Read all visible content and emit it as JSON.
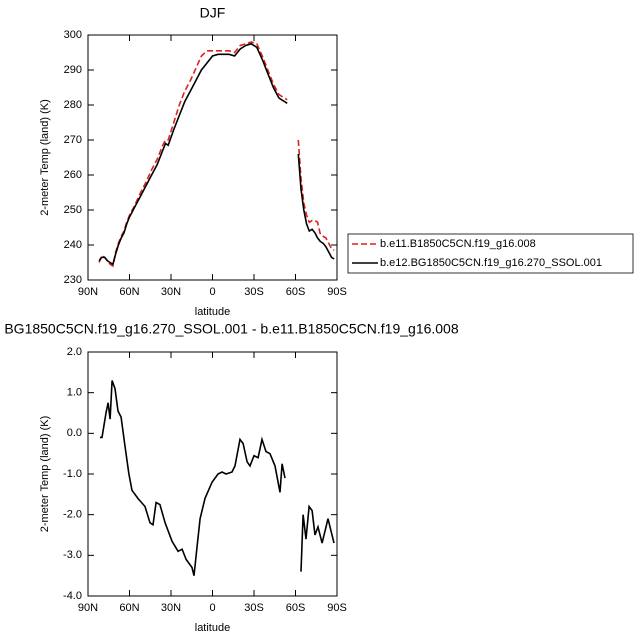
{
  "chart_data": [
    {
      "type": "line",
      "title": "DJF",
      "xlabel": "latitude",
      "ylabel": "2-meter Temp (land) (K)",
      "xlim": [
        90,
        -90
      ],
      "ylim": [
        230,
        300
      ],
      "xticks": [
        {
          "value": 90,
          "label": "90N"
        },
        {
          "value": 60,
          "label": "60N"
        },
        {
          "value": 30,
          "label": "30N"
        },
        0,
        {
          "value": -30,
          "label": "30S"
        },
        {
          "value": -60,
          "label": "60S"
        },
        {
          "value": -90,
          "label": "90S"
        }
      ],
      "yticks": [
        230,
        240,
        250,
        260,
        270,
        280,
        290,
        300
      ],
      "legend": "right",
      "x": [
        82,
        80,
        78,
        76,
        74,
        72,
        70,
        68,
        66,
        64,
        62,
        60,
        56,
        52,
        48,
        44,
        40,
        36,
        34,
        32,
        28,
        24,
        20,
        16,
        12,
        8,
        4,
        0,
        -4,
        -8,
        -12,
        -16,
        -20,
        -24,
        -28,
        -32,
        -36,
        -40,
        -44,
        -48,
        -50,
        -52,
        -54,
        -58,
        -62,
        -64,
        -66,
        -68,
        -70,
        -72,
        -74,
        -76,
        -78,
        -80,
        -82,
        -84,
        -86,
        -88
      ],
      "series": [
        {
          "name": "b.e11.B1850C5CN.f19_g16.008",
          "color": "#e0201b",
          "dash": true,
          "values": [
            235,
            237,
            236.5,
            235.5,
            234.5,
            234,
            238,
            240.5,
            242.5,
            244,
            246.5,
            248.5,
            251.5,
            255,
            258,
            261.5,
            264.5,
            268.5,
            270,
            270,
            275,
            280,
            284,
            287,
            290.5,
            294,
            295.5,
            295.5,
            295.5,
            295.5,
            295.5,
            295,
            297,
            297.5,
            298,
            297.5,
            294,
            290,
            286,
            283,
            282.5,
            282,
            281.5,
            null,
            270,
            259,
            252,
            248.5,
            246.5,
            247,
            247,
            246.5,
            243,
            242.5,
            242,
            240.5,
            239,
            238.5
          ]
        },
        {
          "name": "b.e12.BG1850C5CN.f19_g16.270_SSOL.001",
          "color": "#000000",
          "dash": false,
          "values": [
            235.5,
            236.5,
            236.5,
            235.5,
            235,
            234.5,
            237.5,
            240,
            242,
            243.5,
            246,
            248,
            251,
            254,
            257,
            260,
            263,
            267,
            269,
            268.5,
            273,
            277,
            281,
            284,
            287,
            290,
            292,
            294,
            294.5,
            294.5,
            294.5,
            294,
            296,
            297,
            297.5,
            296.5,
            293,
            289,
            285,
            282,
            281.5,
            281,
            280.5,
            null,
            266,
            256,
            250,
            246,
            244,
            244.5,
            243.5,
            242,
            241,
            240.5,
            239.5,
            238,
            236.5,
            236
          ]
        }
      ]
    },
    {
      "type": "line",
      "title": "BG1850C5CN.f19_g16.270_SSOL.001 - b.e11.B1850C5CN.f19_g16.008",
      "xlabel": "latitude",
      "ylabel": "2-meter Temp (land) (K)",
      "xlim": [
        90,
        -90
      ],
      "ylim": [
        -4,
        2
      ],
      "xticks": [
        {
          "value": 90,
          "label": "90N"
        },
        {
          "value": 60,
          "label": "60N"
        },
        {
          "value": 30,
          "label": "30N"
        },
        0,
        {
          "value": -30,
          "label": "30S"
        },
        {
          "value": -60,
          "label": "60S"
        },
        {
          "value": -90,
          "label": "90S"
        }
      ],
      "yticks": [
        {
          "value": 2,
          "label": "2.0"
        },
        {
          "value": 1,
          "label": "1.0"
        },
        {
          "value": 0,
          "label": "0.0"
        },
        {
          "value": -1,
          "label": "-1.0"
        },
        {
          "value": -2,
          "label": "-2.0"
        },
        {
          "value": -3,
          "label": "-3.0"
        },
        {
          "value": -4,
          "label": "-4.0"
        }
      ],
      "color": "#000000",
      "x": [
        81.3,
        79.9,
        77,
        75.5,
        74,
        72.6,
        70.5,
        68.3,
        66.1,
        63.3,
        60.4,
        58.2,
        53.9,
        48.8,
        45.2,
        43,
        40.8,
        38,
        34.3,
        29.3,
        24.9,
        22,
        19.1,
        14.8,
        13.4,
        11.2,
        9,
        5.4,
        0.3,
        -4,
        -6.9,
        -9.8,
        -14.1,
        -16.3,
        -19.9,
        -22.1,
        -25,
        -27.1,
        -30,
        -33,
        -35.8,
        -38.7,
        -41.6,
        -45.2,
        -48.8,
        -50.3,
        -52.4,
        -58,
        -64,
        -65.5,
        -67.6,
        -69.8,
        -72,
        -74.1,
        -76.3,
        -79.2,
        -83.5,
        -87.8
      ],
      "values": [
        -0.1,
        -0.1,
        0.5,
        0.75,
        0.35,
        1.3,
        1.1,
        0.55,
        0.4,
        -0.3,
        -1,
        -1.4,
        -1.6,
        -1.8,
        -2.2,
        -2.25,
        -1.7,
        -1.75,
        -2.2,
        -2.65,
        -2.9,
        -2.85,
        -3.1,
        -3.3,
        -3.5,
        -2.8,
        -2.1,
        -1.6,
        -1.2,
        -1,
        -0.95,
        -1,
        -0.95,
        -0.8,
        -0.15,
        -0.25,
        -0.7,
        -0.8,
        -0.55,
        -0.6,
        -0.15,
        -0.45,
        -0.5,
        -0.8,
        -1.45,
        -0.75,
        -1.1,
        null,
        -3.4,
        -2,
        -2.6,
        -1.8,
        -1.9,
        -2.5,
        -2.3,
        -2.7,
        -2.1,
        -2.7
      ]
    }
  ]
}
